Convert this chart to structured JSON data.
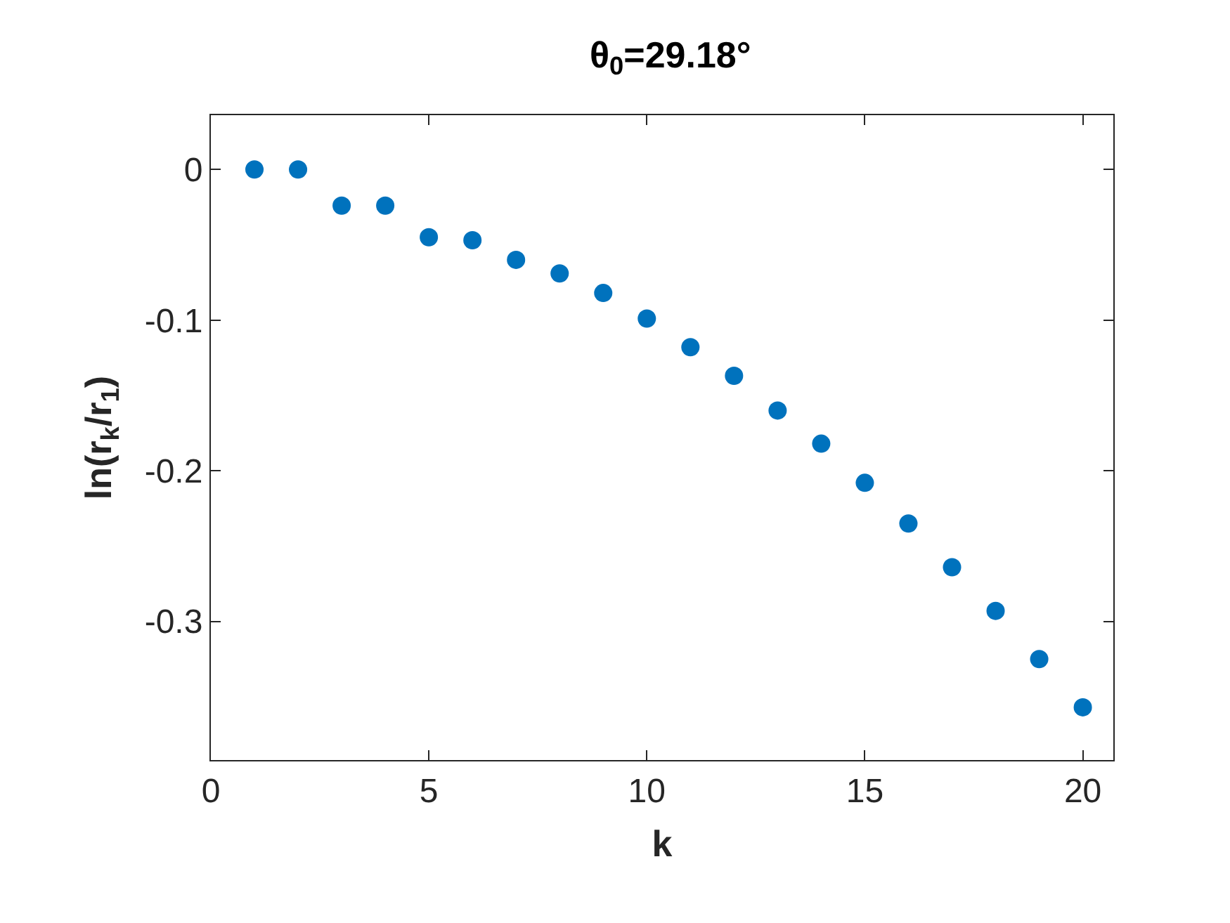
{
  "chart_data": {
    "type": "scatter",
    "title": "θ$_{0}$=29.18°",
    "xlabel": "k",
    "ylabel": "ln(r$_{k}$/r$_{1}$)",
    "x": [
      1,
      2,
      3,
      4,
      5,
      6,
      7,
      8,
      9,
      10,
      11,
      12,
      13,
      14,
      15,
      16,
      17,
      18,
      19,
      20
    ],
    "series": [
      {
        "color": "#0072bd",
        "values": [
          0,
          0,
          -0.024,
          -0.024,
          -0.045,
          -0.047,
          -0.06,
          -0.069,
          -0.082,
          -0.099,
          -0.118,
          -0.137,
          -0.16,
          -0.182,
          -0.208,
          -0.235,
          -0.264,
          -0.293,
          -0.325,
          -0.357
        ]
      }
    ],
    "xlim": [
      0,
      20.7
    ],
    "xticks": [
      0,
      5,
      10,
      15,
      20
    ],
    "ylim": [
      -0.392,
      0.036
    ],
    "yticks": [
      0,
      -0.1,
      -0.2,
      -0.3
    ],
    "marker": "circle"
  }
}
